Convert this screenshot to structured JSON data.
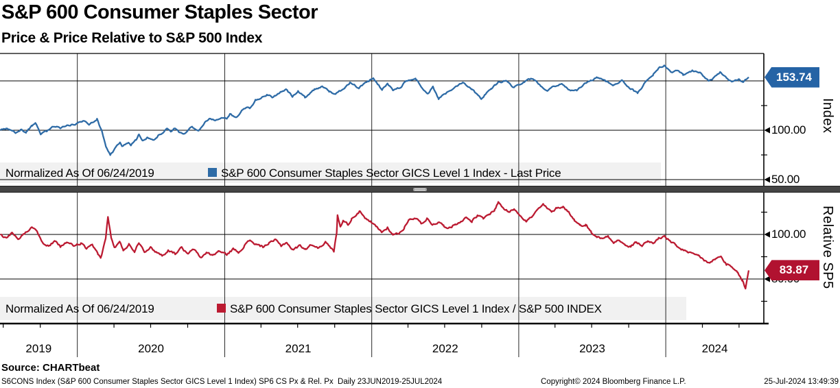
{
  "header": {
    "title": "S&P 600 Consumer Staples Sector",
    "subtitle": "Price & Price Relative to S&P 500 Index"
  },
  "colors": {
    "blue_line": "#2e6ba6",
    "blue_badge": "#2563a5",
    "blue_badge_border": "#16365c",
    "red_line": "#bb1a31",
    "red_badge": "#b11230",
    "red_badge_border": "#5f0918",
    "legend_bg": "#f1f1f1",
    "grid": "#000000",
    "separator": "#454545"
  },
  "x_axis": {
    "start_date": "2019-06-23",
    "end_date": "2024-07-25",
    "year_labels": [
      "2019",
      "2020",
      "2021",
      "2022",
      "2023",
      "2024"
    ],
    "gridline_years": [
      "2020-01-01",
      "2021-01-01",
      "2022-01-01",
      "2023-01-01",
      "2024-01-01"
    ]
  },
  "chart_data": [
    {
      "type": "line",
      "panel": "price",
      "normalized_note": "Normalized As Of 06/24/2019",
      "legend_label": "S&P 600 Consumer Staples Sector GICS Level 1 Index - Last Price",
      "axis_label": "Index",
      "last_value": 153.74,
      "last_value_label": "153.74",
      "y_gridline_values": [
        150,
        100,
        50
      ],
      "y_major_ticks": [
        {
          "value": 100,
          "label": "100.00"
        },
        {
          "value": 50,
          "label": "50.00"
        }
      ],
      "y_minor_tick_values": [
        125,
        75
      ],
      "ylim": [
        50,
        178
      ],
      "series": [
        [
          "2019-06-24",
          100
        ],
        [
          "2019-07-08",
          101.5
        ],
        [
          "2019-07-18",
          99.5
        ],
        [
          "2019-08-02",
          97.5
        ],
        [
          "2019-08-13",
          100.5
        ],
        [
          "2019-08-27",
          98
        ],
        [
          "2019-09-11",
          104.5
        ],
        [
          "2019-09-19",
          106.5
        ],
        [
          "2019-10-02",
          96.5
        ],
        [
          "2019-10-17",
          99.5
        ],
        [
          "2019-11-05",
          104
        ],
        [
          "2019-11-20",
          102.5
        ],
        [
          "2019-12-09",
          105
        ],
        [
          "2019-12-27",
          106
        ],
        [
          "2020-01-16",
          109.5
        ],
        [
          "2020-01-30",
          106.5
        ],
        [
          "2020-02-19",
          111.5
        ],
        [
          "2020-03-02",
          99
        ],
        [
          "2020-03-12",
          84
        ],
        [
          "2020-03-23",
          74.5
        ],
        [
          "2020-04-08",
          84
        ],
        [
          "2020-04-16",
          87
        ],
        [
          "2020-04-21",
          84
        ],
        [
          "2020-05-07",
          88
        ],
        [
          "2020-05-13",
          85
        ],
        [
          "2020-05-26",
          90.5
        ],
        [
          "2020-06-02",
          96.5
        ],
        [
          "2020-06-11",
          88.5
        ],
        [
          "2020-06-23",
          92.5
        ],
        [
          "2020-07-09",
          91
        ],
        [
          "2020-07-22",
          95.5
        ],
        [
          "2020-08-11",
          101
        ],
        [
          "2020-08-20",
          98.5
        ],
        [
          "2020-09-01",
          102
        ],
        [
          "2020-09-10",
          98
        ],
        [
          "2020-09-23",
          96.5
        ],
        [
          "2020-10-12",
          103.5
        ],
        [
          "2020-10-29",
          99.5
        ],
        [
          "2020-11-13",
          108.5
        ],
        [
          "2020-11-24",
          111.5
        ],
        [
          "2020-12-09",
          109.5
        ],
        [
          "2020-12-21",
          113
        ],
        [
          "2021-01-06",
          112
        ],
        [
          "2021-01-14",
          116
        ],
        [
          "2021-01-29",
          113
        ],
        [
          "2021-02-12",
          119.5
        ],
        [
          "2021-02-24",
          124
        ],
        [
          "2021-03-04",
          122.5
        ],
        [
          "2021-03-18",
          130
        ],
        [
          "2021-04-05",
          133.5
        ],
        [
          "2021-04-16",
          136
        ],
        [
          "2021-04-29",
          133.5
        ],
        [
          "2021-05-14",
          137.5
        ],
        [
          "2021-06-02",
          141
        ],
        [
          "2021-06-18",
          134.5
        ],
        [
          "2021-07-02",
          139
        ],
        [
          "2021-07-19",
          133.5
        ],
        [
          "2021-08-12",
          141.5
        ],
        [
          "2021-08-31",
          144.5
        ],
        [
          "2021-09-17",
          139.5
        ],
        [
          "2021-10-04",
          136.5
        ],
        [
          "2021-10-26",
          143.5
        ],
        [
          "2021-11-08",
          148.5
        ],
        [
          "2021-11-30",
          143
        ],
        [
          "2021-12-28",
          150.5
        ],
        [
          "2022-01-05",
          152.5
        ],
        [
          "2022-01-27",
          141
        ],
        [
          "2022-02-09",
          147
        ],
        [
          "2022-02-23",
          140.5
        ],
        [
          "2022-03-14",
          144
        ],
        [
          "2022-03-29",
          150.5
        ],
        [
          "2022-04-20",
          152
        ],
        [
          "2022-05-11",
          140.5
        ],
        [
          "2022-05-19",
          136
        ],
        [
          "2022-06-02",
          143.5
        ],
        [
          "2022-06-16",
          132
        ],
        [
          "2022-07-01",
          136.5
        ],
        [
          "2022-07-19",
          141.5
        ],
        [
          "2022-08-15",
          149
        ],
        [
          "2022-09-06",
          142
        ],
        [
          "2022-09-30",
          132.5
        ],
        [
          "2022-10-25",
          142.5
        ],
        [
          "2022-11-11",
          148
        ],
        [
          "2022-12-01",
          150.5
        ],
        [
          "2022-12-20",
          143
        ],
        [
          "2023-01-12",
          149
        ],
        [
          "2023-02-02",
          152.5
        ],
        [
          "2023-02-22",
          146
        ],
        [
          "2023-03-13",
          140.5
        ],
        [
          "2023-03-24",
          144
        ],
        [
          "2023-04-18",
          147.5
        ],
        [
          "2023-05-04",
          141
        ],
        [
          "2023-05-25",
          139.5
        ],
        [
          "2023-06-15",
          148
        ],
        [
          "2023-06-30",
          151
        ],
        [
          "2023-07-18",
          153.5
        ],
        [
          "2023-08-04",
          149.5
        ],
        [
          "2023-08-24",
          146
        ],
        [
          "2023-09-14",
          150.5
        ],
        [
          "2023-10-03",
          143
        ],
        [
          "2023-10-23",
          137.5
        ],
        [
          "2023-11-14",
          150
        ],
        [
          "2023-12-01",
          156.5
        ],
        [
          "2023-12-14",
          163
        ],
        [
          "2023-12-28",
          165.5
        ],
        [
          "2024-01-17",
          158
        ],
        [
          "2024-02-02",
          161
        ],
        [
          "2024-02-13",
          156
        ],
        [
          "2024-03-07",
          160.5
        ],
        [
          "2024-03-28",
          158
        ],
        [
          "2024-04-17",
          149.5
        ],
        [
          "2024-05-03",
          154
        ],
        [
          "2024-05-15",
          158.5
        ],
        [
          "2024-05-31",
          152.5
        ],
        [
          "2024-06-13",
          149
        ],
        [
          "2024-07-01",
          151.5
        ],
        [
          "2024-07-11",
          148.5
        ],
        [
          "2024-07-25",
          153.74
        ]
      ]
    },
    {
      "type": "line",
      "panel": "relative",
      "normalized_note": "Normalized As Of 06/24/2019",
      "legend_label": "S&P 600 Consumer Staples Sector GICS Level 1 Index / S&P 500 INDEX",
      "axis_label": "Relative SP5",
      "last_value": 83.87,
      "last_value_label": "83.87",
      "y_gridline_values": [
        100,
        80
      ],
      "y_major_ticks": [
        {
          "value": 100,
          "label": "100.00"
        },
        {
          "value": 80,
          "label": "80.00"
        }
      ],
      "y_minor_tick_values": [
        110,
        90,
        70
      ],
      "ylim": [
        60,
        118
      ],
      "series": [
        [
          "2019-06-24",
          100
        ],
        [
          "2019-07-09",
          98
        ],
        [
          "2019-07-23",
          100.5
        ],
        [
          "2019-08-07",
          97.5
        ],
        [
          "2019-08-20",
          100
        ],
        [
          "2019-09-10",
          103.5
        ],
        [
          "2019-09-23",
          102
        ],
        [
          "2019-10-08",
          95.5
        ],
        [
          "2019-10-23",
          95
        ],
        [
          "2019-11-06",
          97
        ],
        [
          "2019-11-20",
          94.5
        ],
        [
          "2019-12-05",
          96.5
        ],
        [
          "2019-12-23",
          95
        ],
        [
          "2020-01-10",
          96
        ],
        [
          "2020-01-24",
          93.5
        ],
        [
          "2020-02-07",
          95
        ],
        [
          "2020-02-21",
          91.5
        ],
        [
          "2020-02-28",
          89.5
        ],
        [
          "2020-03-06",
          94
        ],
        [
          "2020-03-12",
          99
        ],
        [
          "2020-03-17",
          108
        ],
        [
          "2020-03-25",
          98.5
        ],
        [
          "2020-04-02",
          94
        ],
        [
          "2020-04-15",
          96.5
        ],
        [
          "2020-04-24",
          93
        ],
        [
          "2020-05-08",
          95.5
        ],
        [
          "2020-05-22",
          92.5
        ],
        [
          "2020-06-02",
          96.5
        ],
        [
          "2020-06-16",
          92.5
        ],
        [
          "2020-07-01",
          94
        ],
        [
          "2020-07-16",
          92
        ],
        [
          "2020-07-31",
          90.5
        ],
        [
          "2020-08-14",
          93
        ],
        [
          "2020-08-31",
          91.5
        ],
        [
          "2020-09-16",
          94
        ],
        [
          "2020-10-02",
          91
        ],
        [
          "2020-10-15",
          93.5
        ],
        [
          "2020-11-03",
          89.5
        ],
        [
          "2020-11-17",
          92
        ],
        [
          "2020-12-02",
          90.5
        ],
        [
          "2020-12-16",
          92.5
        ],
        [
          "2021-01-06",
          91
        ],
        [
          "2021-01-22",
          93.5
        ],
        [
          "2021-02-04",
          92
        ],
        [
          "2021-02-19",
          95
        ],
        [
          "2021-03-05",
          97.5
        ],
        [
          "2021-03-19",
          95.5
        ],
        [
          "2021-04-06",
          94.5
        ],
        [
          "2021-04-21",
          96
        ],
        [
          "2021-05-07",
          97.5
        ],
        [
          "2021-05-21",
          95
        ],
        [
          "2021-06-04",
          96.5
        ],
        [
          "2021-06-18",
          93
        ],
        [
          "2021-07-07",
          95
        ],
        [
          "2021-07-21",
          93.5
        ],
        [
          "2021-08-06",
          95.5
        ],
        [
          "2021-08-20",
          94
        ],
        [
          "2021-09-08",
          96.5
        ],
        [
          "2021-09-21",
          94
        ],
        [
          "2021-09-29",
          92.5
        ],
        [
          "2021-10-06",
          101
        ],
        [
          "2021-10-08",
          108.5
        ],
        [
          "2021-10-15",
          103.5
        ],
        [
          "2021-10-22",
          106.5
        ],
        [
          "2021-11-03",
          104.5
        ],
        [
          "2021-11-12",
          107
        ],
        [
          "2021-11-26",
          109.5
        ],
        [
          "2021-12-03",
          110.5
        ],
        [
          "2021-12-15",
          107
        ],
        [
          "2021-12-29",
          105.5
        ],
        [
          "2022-01-12",
          103.5
        ],
        [
          "2022-01-26",
          101
        ],
        [
          "2022-02-09",
          103
        ],
        [
          "2022-02-23",
          100
        ],
        [
          "2022-03-09",
          100.5
        ],
        [
          "2022-03-23",
          103
        ],
        [
          "2022-04-06",
          107
        ],
        [
          "2022-04-20",
          107.5
        ],
        [
          "2022-05-04",
          105
        ],
        [
          "2022-05-18",
          107
        ],
        [
          "2022-06-01",
          104.5
        ],
        [
          "2022-06-15",
          105.5
        ],
        [
          "2022-06-29",
          104
        ],
        [
          "2022-07-13",
          103
        ],
        [
          "2022-07-27",
          104.5
        ],
        [
          "2022-08-10",
          106
        ],
        [
          "2022-08-24",
          107.5
        ],
        [
          "2022-09-07",
          106
        ],
        [
          "2022-09-21",
          108.5
        ],
        [
          "2022-10-05",
          107
        ],
        [
          "2022-10-19",
          109
        ],
        [
          "2022-11-02",
          111
        ],
        [
          "2022-11-11",
          114.5
        ],
        [
          "2022-11-23",
          112
        ],
        [
          "2022-12-07",
          110
        ],
        [
          "2022-12-21",
          111.5
        ],
        [
          "2023-01-06",
          108.5
        ],
        [
          "2023-01-20",
          106
        ],
        [
          "2023-02-03",
          108
        ],
        [
          "2023-02-17",
          111
        ],
        [
          "2023-03-03",
          113.5
        ],
        [
          "2023-03-10",
          112
        ],
        [
          "2023-03-24",
          110
        ],
        [
          "2023-04-06",
          112
        ],
        [
          "2023-04-21",
          112.5
        ],
        [
          "2023-05-05",
          110
        ],
        [
          "2023-05-19",
          106.5
        ],
        [
          "2023-06-02",
          104
        ],
        [
          "2023-06-16",
          104.5
        ],
        [
          "2023-06-30",
          101
        ],
        [
          "2023-07-14",
          99
        ],
        [
          "2023-07-28",
          98
        ],
        [
          "2023-08-11",
          99.5
        ],
        [
          "2023-08-25",
          96.5
        ],
        [
          "2023-09-08",
          97.5
        ],
        [
          "2023-09-22",
          95
        ],
        [
          "2023-10-06",
          94.5
        ],
        [
          "2023-10-20",
          96.5
        ],
        [
          "2023-11-03",
          95
        ],
        [
          "2023-11-17",
          97
        ],
        [
          "2023-12-01",
          96
        ],
        [
          "2023-12-15",
          98.5
        ],
        [
          "2023-12-29",
          99
        ],
        [
          "2024-01-12",
          97
        ],
        [
          "2024-01-26",
          95
        ],
        [
          "2024-02-09",
          93.5
        ],
        [
          "2024-02-23",
          92
        ],
        [
          "2024-03-08",
          91
        ],
        [
          "2024-03-22",
          90.5
        ],
        [
          "2024-04-05",
          88.5
        ],
        [
          "2024-04-19",
          87
        ],
        [
          "2024-05-03",
          89
        ],
        [
          "2024-05-17",
          90
        ],
        [
          "2024-05-31",
          86.5
        ],
        [
          "2024-06-14",
          85
        ],
        [
          "2024-06-28",
          82.5
        ],
        [
          "2024-07-09",
          79.5
        ],
        [
          "2024-07-17",
          75.5
        ],
        [
          "2024-07-25",
          83.87
        ]
      ]
    }
  ],
  "footer": {
    "source": "Source: CHARTbeat",
    "left": "S6CONS Index (S&P 600 Consumer Staples Sector GICS Level 1 Index) SP6 CS Px & Rel. Px  Daily 23JUN2019-25JUL2024",
    "copyright": "Copyright© 2024 Bloomberg Finance L.P.",
    "timestamp": "25-Jul-2024 13:49:39"
  }
}
